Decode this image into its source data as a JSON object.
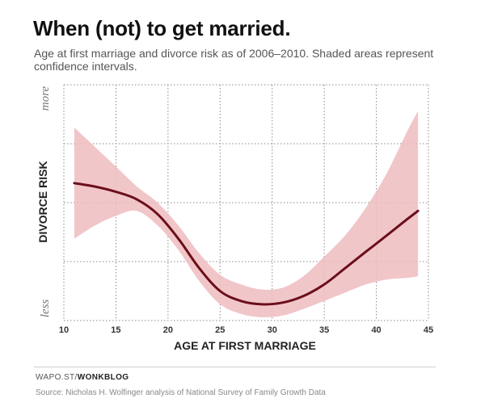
{
  "header": {
    "title": "When (not) to get married.",
    "subtitle": "Age at first marriage and divorce risk as of 2006–2010. Shaded areas represent confidence intervals."
  },
  "footer": {
    "credit_prefix": "WAPO.ST/",
    "credit_brand": "WONKBLOG",
    "source": "Source: Nicholas H. Wolfinger analysis of National Survey of Family Growth Data"
  },
  "colors": {
    "line": "#6b0f1a",
    "band": "#eebcc0",
    "grid": "#8a8a8a"
  },
  "chart_data": {
    "type": "line",
    "xlabel": "AGE AT FIRST MARRIAGE",
    "ylabel": "DIVORCE RISK",
    "y_top_label": "more",
    "y_bottom_label": "less",
    "xlim": [
      10,
      45
    ],
    "ylim": [
      0,
      100
    ],
    "x_ticks": [
      "10",
      "15",
      "20",
      "25",
      "30",
      "35",
      "40",
      "45"
    ],
    "grid": true,
    "series": [
      {
        "x": [
          11,
          13,
          15,
          17,
          19,
          21,
          23,
          25,
          27,
          29,
          31,
          33,
          35,
          37,
          39,
          41,
          43,
          44
        ],
        "values": [
          58.3,
          56.8,
          54.6,
          51.4,
          45.1,
          34.7,
          22.2,
          12.5,
          8.3,
          6.9,
          7.6,
          10.4,
          15.3,
          22.2,
          29.2,
          36.1,
          43.1,
          46.5
        ],
        "lower": [
          34.7,
          40.3,
          44.4,
          46.5,
          40.3,
          29.9,
          16.7,
          6.9,
          2.8,
          1.4,
          2.1,
          4.9,
          8.3,
          11.8,
          15.3,
          17.4,
          18.1,
          18.8
        ],
        "upper": [
          81.9,
          73.6,
          65.3,
          56.9,
          50.0,
          40.3,
          28.5,
          19.4,
          15.3,
          13.2,
          13.9,
          18.8,
          27.1,
          36.1,
          47.9,
          62.5,
          80.6,
          88.9
        ]
      }
    ]
  }
}
